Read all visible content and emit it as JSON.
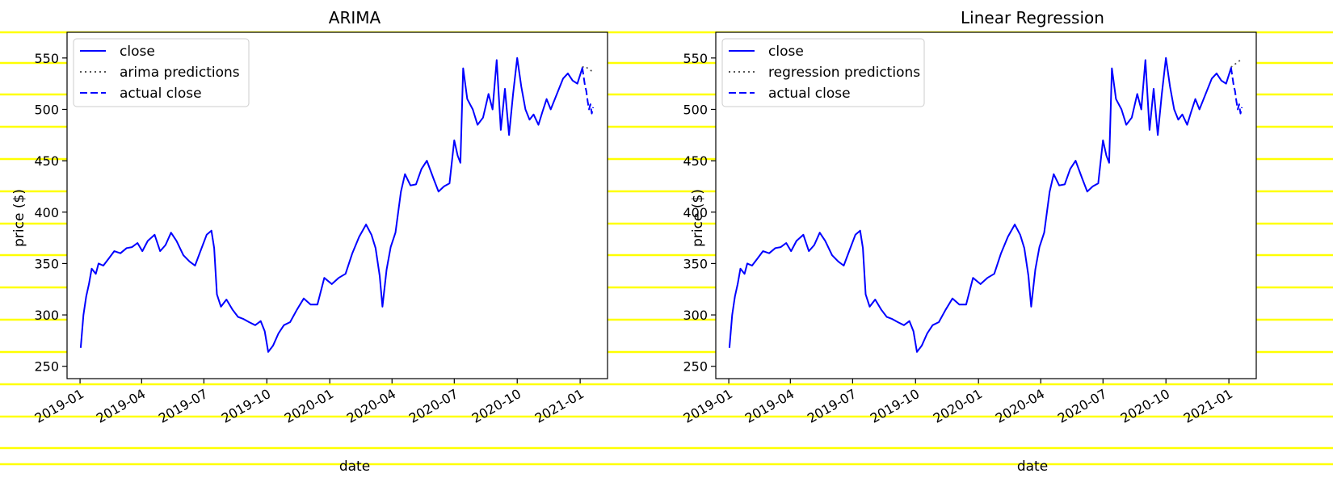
{
  "figure": {
    "background_lines_color": "#ffff00",
    "background_lines_y": [
      40,
      78,
      117,
      157,
      197,
      237,
      277,
      316,
      356,
      396,
      436,
      476,
      516,
      555,
      575
    ]
  },
  "chart_data": [
    {
      "type": "line",
      "title": "ARIMA",
      "xlabel": "date",
      "ylabel": "price ($)",
      "ylim": [
        238,
        575
      ],
      "xlim": [
        "2018-12-13",
        "2021-02-10"
      ],
      "yticks": [
        250,
        300,
        350,
        400,
        450,
        500,
        550
      ],
      "xticks": [
        "2019-01",
        "2019-04",
        "2019-07",
        "2019-10",
        "2020-01",
        "2020-04",
        "2020-07",
        "2020-10",
        "2021-01"
      ],
      "grid": false,
      "legend": "upper left",
      "series": [
        {
          "name": "close",
          "style": "solid",
          "color": "#0000ff",
          "x": [
            "2019-01-02",
            "2019-01-06",
            "2019-01-10",
            "2019-01-14",
            "2019-01-18",
            "2019-01-24",
            "2019-01-28",
            "2019-02-04",
            "2019-02-12",
            "2019-02-20",
            "2019-03-01",
            "2019-03-10",
            "2019-03-18",
            "2019-03-26",
            "2019-04-02",
            "2019-04-10",
            "2019-04-20",
            "2019-04-28",
            "2019-05-06",
            "2019-05-14",
            "2019-05-22",
            "2019-06-01",
            "2019-06-10",
            "2019-06-18",
            "2019-06-26",
            "2019-07-05",
            "2019-07-12",
            "2019-07-16",
            "2019-07-20",
            "2019-07-26",
            "2019-08-03",
            "2019-08-12",
            "2019-08-20",
            "2019-08-28",
            "2019-09-05",
            "2019-09-14",
            "2019-09-22",
            "2019-09-28",
            "2019-10-03",
            "2019-10-10",
            "2019-10-18",
            "2019-10-26",
            "2019-11-04",
            "2019-11-14",
            "2019-11-24",
            "2019-12-04",
            "2019-12-14",
            "2019-12-24",
            "2020-01-04",
            "2020-01-14",
            "2020-01-24",
            "2020-02-03",
            "2020-02-13",
            "2020-02-23",
            "2020-03-02",
            "2020-03-08",
            "2020-03-14",
            "2020-03-18",
            "2020-03-24",
            "2020-03-30",
            "2020-04-06",
            "2020-04-14",
            "2020-04-20",
            "2020-04-28",
            "2020-05-06",
            "2020-05-14",
            "2020-05-22",
            "2020-06-01",
            "2020-06-08",
            "2020-06-16",
            "2020-06-24",
            "2020-07-01",
            "2020-07-06",
            "2020-07-10",
            "2020-07-14",
            "2020-07-20",
            "2020-07-28",
            "2020-08-04",
            "2020-08-12",
            "2020-08-20",
            "2020-08-26",
            "2020-09-01",
            "2020-09-07",
            "2020-09-13",
            "2020-09-19",
            "2020-09-25",
            "2020-10-01",
            "2020-10-07",
            "2020-10-13",
            "2020-10-19",
            "2020-10-25",
            "2020-11-01",
            "2020-11-07",
            "2020-11-13",
            "2020-11-19",
            "2020-11-25",
            "2020-12-01",
            "2020-12-07",
            "2020-12-14",
            "2020-12-21",
            "2020-12-28",
            "2021-01-04"
          ],
          "y": [
            268,
            300,
            318,
            330,
            345,
            340,
            350,
            348,
            355,
            362,
            360,
            365,
            366,
            370,
            362,
            372,
            378,
            362,
            368,
            380,
            372,
            358,
            352,
            348,
            362,
            378,
            382,
            365,
            320,
            308,
            315,
            305,
            298,
            296,
            293,
            290,
            294,
            284,
            264,
            270,
            282,
            290,
            293,
            305,
            316,
            310,
            310,
            336,
            330,
            336,
            340,
            360,
            376,
            388,
            378,
            365,
            338,
            308,
            344,
            366,
            380,
            420,
            437,
            426,
            427,
            442,
            450,
            432,
            420,
            425,
            428,
            470,
            455,
            448,
            540,
            510,
            500,
            485,
            492,
            515,
            500,
            548,
            480,
            520,
            475,
            515,
            550,
            522,
            500,
            490,
            495,
            485,
            498,
            510,
            500,
            510,
            520,
            530,
            535,
            528,
            525,
            540
          ]
        },
        {
          "name": "arima predictions",
          "style": "dotted",
          "color": "#555555",
          "x": [
            "2021-01-04",
            "2021-01-08",
            "2021-01-12",
            "2021-01-16",
            "2021-01-20"
          ],
          "y": [
            541,
            542,
            540,
            538,
            537
          ]
        },
        {
          "name": "actual close",
          "style": "dashed",
          "color": "#0000ff",
          "x": [
            "2021-01-04",
            "2021-01-06",
            "2021-01-08",
            "2021-01-10",
            "2021-01-12",
            "2021-01-14",
            "2021-01-16",
            "2021-01-18",
            "2021-01-20"
          ],
          "y": [
            541,
            532,
            523,
            518,
            508,
            500,
            505,
            496,
            502
          ]
        }
      ]
    },
    {
      "type": "line",
      "title": "Linear Regression",
      "xlabel": "date",
      "ylabel": "price ($)",
      "ylim": [
        238,
        575
      ],
      "xlim": [
        "2018-12-13",
        "2021-02-10"
      ],
      "yticks": [
        250,
        300,
        350,
        400,
        450,
        500,
        550
      ],
      "xticks": [
        "2019-01",
        "2019-04",
        "2019-07",
        "2019-10",
        "2020-01",
        "2020-04",
        "2020-07",
        "2020-10",
        "2021-01"
      ],
      "grid": false,
      "legend": "upper left",
      "series": [
        {
          "name": "close",
          "style": "solid",
          "color": "#0000ff",
          "x": [
            "2019-01-02",
            "2019-01-06",
            "2019-01-10",
            "2019-01-14",
            "2019-01-18",
            "2019-01-24",
            "2019-01-28",
            "2019-02-04",
            "2019-02-12",
            "2019-02-20",
            "2019-03-01",
            "2019-03-10",
            "2019-03-18",
            "2019-03-26",
            "2019-04-02",
            "2019-04-10",
            "2019-04-20",
            "2019-04-28",
            "2019-05-06",
            "2019-05-14",
            "2019-05-22",
            "2019-06-01",
            "2019-06-10",
            "2019-06-18",
            "2019-06-26",
            "2019-07-05",
            "2019-07-12",
            "2019-07-16",
            "2019-07-20",
            "2019-07-26",
            "2019-08-03",
            "2019-08-12",
            "2019-08-20",
            "2019-08-28",
            "2019-09-05",
            "2019-09-14",
            "2019-09-22",
            "2019-09-28",
            "2019-10-03",
            "2019-10-10",
            "2019-10-18",
            "2019-10-26",
            "2019-11-04",
            "2019-11-14",
            "2019-11-24",
            "2019-12-04",
            "2019-12-14",
            "2019-12-24",
            "2020-01-04",
            "2020-01-14",
            "2020-01-24",
            "2020-02-03",
            "2020-02-13",
            "2020-02-23",
            "2020-03-02",
            "2020-03-08",
            "2020-03-14",
            "2020-03-18",
            "2020-03-24",
            "2020-03-30",
            "2020-04-06",
            "2020-04-14",
            "2020-04-20",
            "2020-04-28",
            "2020-05-06",
            "2020-05-14",
            "2020-05-22",
            "2020-06-01",
            "2020-06-08",
            "2020-06-16",
            "2020-06-24",
            "2020-07-01",
            "2020-07-06",
            "2020-07-10",
            "2020-07-14",
            "2020-07-20",
            "2020-07-28",
            "2020-08-04",
            "2020-08-12",
            "2020-08-20",
            "2020-08-26",
            "2020-09-01",
            "2020-09-07",
            "2020-09-13",
            "2020-09-19",
            "2020-09-25",
            "2020-10-01",
            "2020-10-07",
            "2020-10-13",
            "2020-10-19",
            "2020-10-25",
            "2020-11-01",
            "2020-11-07",
            "2020-11-13",
            "2020-11-19",
            "2020-11-25",
            "2020-12-01",
            "2020-12-07",
            "2020-12-14",
            "2020-12-21",
            "2020-12-28",
            "2021-01-04"
          ],
          "y": [
            268,
            300,
            318,
            330,
            345,
            340,
            350,
            348,
            355,
            362,
            360,
            365,
            366,
            370,
            362,
            372,
            378,
            362,
            368,
            380,
            372,
            358,
            352,
            348,
            362,
            378,
            382,
            365,
            320,
            308,
            315,
            305,
            298,
            296,
            293,
            290,
            294,
            284,
            264,
            270,
            282,
            290,
            293,
            305,
            316,
            310,
            310,
            336,
            330,
            336,
            340,
            360,
            376,
            388,
            378,
            365,
            338,
            308,
            344,
            366,
            380,
            420,
            437,
            426,
            427,
            442,
            450,
            432,
            420,
            425,
            428,
            470,
            455,
            448,
            540,
            510,
            500,
            485,
            492,
            515,
            500,
            548,
            480,
            520,
            475,
            515,
            550,
            522,
            500,
            490,
            495,
            485,
            498,
            510,
            500,
            510,
            520,
            530,
            535,
            528,
            525,
            540
          ]
        },
        {
          "name": "regression predictions",
          "style": "dotted",
          "color": "#555555",
          "x": [
            "2021-01-04",
            "2021-01-08",
            "2021-01-12",
            "2021-01-16",
            "2021-01-20"
          ],
          "y": [
            541,
            543,
            545,
            547,
            549
          ]
        },
        {
          "name": "actual close",
          "style": "dashed",
          "color": "#0000ff",
          "x": [
            "2021-01-04",
            "2021-01-06",
            "2021-01-08",
            "2021-01-10",
            "2021-01-12",
            "2021-01-14",
            "2021-01-16",
            "2021-01-18",
            "2021-01-20"
          ],
          "y": [
            541,
            532,
            523,
            518,
            508,
            500,
            505,
            496,
            502
          ]
        }
      ]
    }
  ]
}
